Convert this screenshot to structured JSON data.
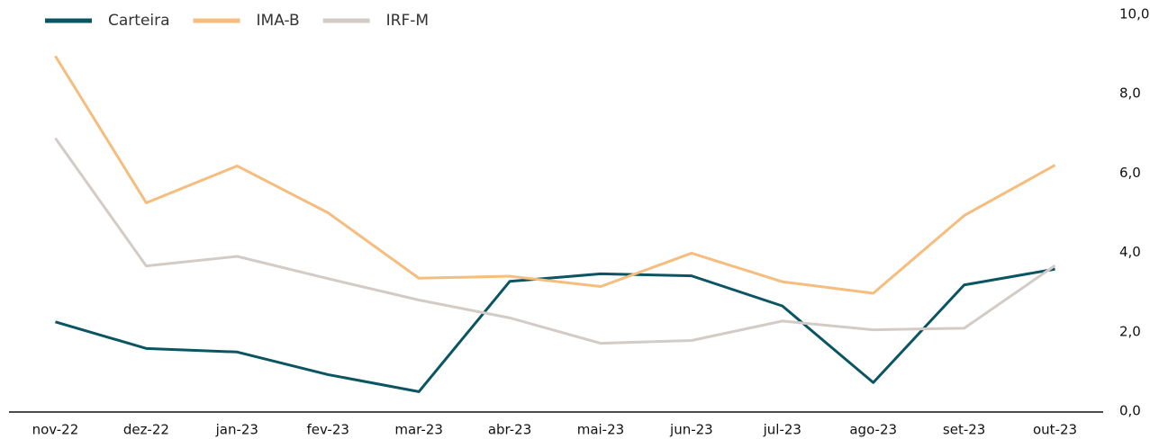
{
  "chart_data": {
    "type": "line",
    "categories": [
      "nov-22",
      "dez-22",
      "jan-23",
      "fev-23",
      "mar-23",
      "abr-23",
      "mai-23",
      "jun-23",
      "jul-23",
      "ago-23",
      "set-23",
      "out-23"
    ],
    "series": [
      {
        "name": "Carteira",
        "color": "#0b5563",
        "values": [
          2.25,
          1.58,
          1.49,
          0.92,
          0.49,
          3.27,
          3.46,
          3.41,
          2.65,
          0.72,
          3.18,
          3.58
        ]
      },
      {
        "name": "IMA-B",
        "color": "#f5bd7e",
        "values": [
          8.95,
          5.25,
          6.18,
          5.0,
          3.35,
          3.4,
          3.14,
          3.98,
          3.26,
          2.97,
          4.93,
          6.2
        ]
      },
      {
        "name": "IRF-M",
        "color": "#d3ccc6",
        "values": [
          6.88,
          3.66,
          3.9,
          3.34,
          2.8,
          2.35,
          1.71,
          1.78,
          2.27,
          2.05,
          2.09,
          3.67
        ]
      }
    ],
    "ylim": [
      0,
      10
    ],
    "yticks": [
      {
        "value": 0,
        "label": "0,0"
      },
      {
        "value": 2,
        "label": "2,0"
      },
      {
        "value": 4,
        "label": "4,0"
      },
      {
        "value": 6,
        "label": "6,0"
      },
      {
        "value": 8,
        "label": "8,0"
      },
      {
        "value": 10,
        "label": "10,0"
      }
    ],
    "grid": false,
    "legend": "top-left"
  }
}
